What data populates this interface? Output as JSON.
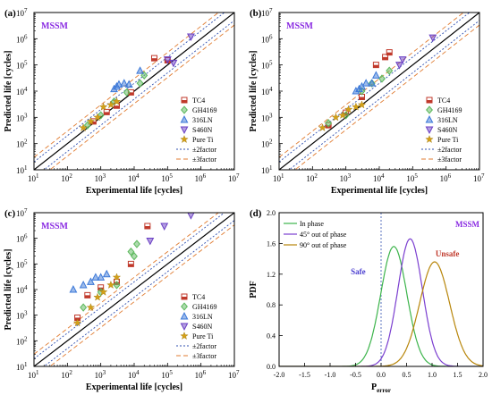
{
  "colors": {
    "TC4": "#c0392b",
    "GH4169": "#5cb85c",
    "316LN": "#3b78d8",
    "S460N": "#6a3fc4",
    "Pure Ti": "#d4a017",
    "factor2": "#3050b0",
    "factor3": "#e07b30",
    "mssm": "#8a2be2",
    "in_phase": "#3cb44b",
    "out45": "#7b3fd0",
    "out90": "#b8860b",
    "safe": "#4b3fd0",
    "unsafe": "#c0392b"
  },
  "chart_data": [
    {
      "type": "scatter",
      "panel_label": "(a)",
      "model_label": "MSSM",
      "xlabel": "Experimental life [cycles]",
      "ylabel": "Predicted life [cycles]",
      "scale": "log",
      "xlim": [
        10,
        10000000
      ],
      "ylim": [
        10,
        10000000
      ],
      "x_tick_labels": [
        "10¹",
        "10²",
        "10³",
        "10⁴",
        "10⁵",
        "10⁶",
        "10⁷"
      ],
      "y_tick_labels": [
        "10¹",
        "10²",
        "10³",
        "10⁴",
        "10⁵",
        "10⁶",
        "10⁷"
      ],
      "legend": [
        "TC4",
        "GH4169",
        "316LN",
        "S460N",
        "Pure Ti",
        "±2factor",
        "±3factor"
      ],
      "legend_position": "lower-right",
      "series": [
        {
          "name": "TC4",
          "marker": "square",
          "points": [
            [
              600,
              700
            ],
            [
              1500,
              1600
            ],
            [
              3000,
              2800
            ],
            [
              8000,
              9000
            ],
            [
              40000,
              180000
            ],
            [
              100000,
              150000
            ]
          ]
        },
        {
          "name": "GH4169",
          "marker": "diamond",
          "points": [
            [
              400,
              500
            ],
            [
              1000,
              1200
            ],
            [
              2500,
              4000
            ],
            [
              6000,
              9000
            ],
            [
              15000,
              20000
            ],
            [
              20000,
              40000
            ]
          ]
        },
        {
          "name": "316LN",
          "marker": "triangle-up",
          "points": [
            [
              2500,
              12000
            ],
            [
              3000,
              15000
            ],
            [
              3500,
              18000
            ],
            [
              5000,
              20000
            ],
            [
              7000,
              18000
            ],
            [
              15000,
              60000
            ]
          ]
        },
        {
          "name": "S460N",
          "marker": "triangle-down",
          "points": [
            [
              150000,
              120000
            ],
            [
              500000,
              1200000
            ],
            [
              100000,
              160000
            ]
          ]
        },
        {
          "name": "Pure Ti",
          "marker": "star",
          "points": [
            [
              300,
              400
            ],
            [
              500,
              700
            ],
            [
              800,
              1000
            ],
            [
              1200,
              2500
            ],
            [
              2000,
              3000
            ],
            [
              3000,
              4000
            ]
          ]
        }
      ]
    },
    {
      "type": "scatter",
      "panel_label": "(b)",
      "model_label": "MSSM",
      "xlabel": "Experimental life [cycles]",
      "ylabel": "Predicted life [cycles]",
      "scale": "log",
      "xlim": [
        10,
        10000000
      ],
      "ylim": [
        10,
        10000000
      ],
      "x_tick_labels": [
        "10¹",
        "10²",
        "10³",
        "10⁴",
        "10⁵",
        "10⁶",
        "10⁷"
      ],
      "y_tick_labels": [
        "10¹",
        "10²",
        "10³",
        "10⁴",
        "10⁵",
        "10⁶",
        "10⁷"
      ],
      "legend": [
        "TC4",
        "GH4169",
        "316LN",
        "S460N",
        "Pure Ti",
        "±2factor",
        "±3factor"
      ],
      "legend_position": "lower-right",
      "series": [
        {
          "name": "TC4",
          "marker": "square",
          "points": [
            [
              300,
              500
            ],
            [
              1000,
              1500
            ],
            [
              3000,
              6000
            ],
            [
              8000,
              100000
            ],
            [
              15000,
              200000
            ],
            [
              20000,
              300000
            ]
          ]
        },
        {
          "name": "GH4169",
          "marker": "diamond",
          "points": [
            [
              300,
              600
            ],
            [
              1000,
              1200
            ],
            [
              3000,
              10000
            ],
            [
              6000,
              20000
            ],
            [
              12000,
              30000
            ],
            [
              20000,
              60000
            ]
          ]
        },
        {
          "name": "316LN",
          "marker": "triangle-up",
          "points": [
            [
              2000,
              10000
            ],
            [
              2500,
              12000
            ],
            [
              3000,
              15000
            ],
            [
              4000,
              20000
            ],
            [
              6000,
              20000
            ],
            [
              8000,
              40000
            ]
          ]
        },
        {
          "name": "S460N",
          "marker": "triangle-down",
          "points": [
            [
              40000,
              100000
            ],
            [
              50000,
              160000
            ],
            [
              400000,
              1100000
            ]
          ]
        },
        {
          "name": "Pure Ti",
          "marker": "star",
          "points": [
            [
              200,
              400
            ],
            [
              500,
              1000
            ],
            [
              800,
              1200
            ],
            [
              1200,
              2000
            ],
            [
              2000,
              2500
            ],
            [
              3000,
              3000
            ]
          ]
        }
      ]
    },
    {
      "type": "scatter",
      "panel_label": "(c)",
      "model_label": "MSSM",
      "xlabel": "Experimental life [cycles]",
      "ylabel": "Predicted life [cycles]",
      "scale": "log",
      "xlim": [
        10,
        10000000
      ],
      "ylim": [
        10,
        10000000
      ],
      "x_tick_labels": [
        "10¹",
        "10²",
        "10³",
        "10⁴",
        "10⁵",
        "10⁶",
        "10⁷"
      ],
      "y_tick_labels": [
        "10¹",
        "10²",
        "10³",
        "10⁴",
        "10⁵",
        "10⁶",
        "10⁷"
      ],
      "legend": [
        "TC4",
        "GH4169",
        "316LN",
        "S460N",
        "Pure Ti",
        "±2factor",
        "±3factor"
      ],
      "legend_position": "lower-right",
      "series": [
        {
          "name": "TC4",
          "marker": "square",
          "points": [
            [
              200,
              800
            ],
            [
              400,
              6000
            ],
            [
              1000,
              12000
            ],
            [
              3000,
              20000
            ],
            [
              8000,
              100000
            ],
            [
              25000,
              3000000
            ]
          ]
        },
        {
          "name": "GH4169",
          "marker": "diamond",
          "points": [
            [
              300,
              2000
            ],
            [
              1000,
              8000
            ],
            [
              3000,
              15000
            ],
            [
              8000,
              300000
            ],
            [
              10000,
              200000
            ],
            [
              12000,
              600000
            ]
          ]
        },
        {
          "name": "316LN",
          "marker": "triangle-up",
          "points": [
            [
              150,
              10000
            ],
            [
              300,
              15000
            ],
            [
              500,
              20000
            ],
            [
              700,
              30000
            ],
            [
              1000,
              30000
            ],
            [
              1500,
              40000
            ]
          ]
        },
        {
          "name": "S460N",
          "marker": "triangle-down",
          "points": [
            [
              30000,
              800000
            ],
            [
              80000,
              3000000
            ],
            [
              500000,
              8000000
            ]
          ]
        },
        {
          "name": "Pure Ti",
          "marker": "star",
          "points": [
            [
              200,
              500
            ],
            [
              500,
              2000
            ],
            [
              800,
              5000
            ],
            [
              1200,
              8000
            ],
            [
              2000,
              15000
            ],
            [
              3000,
              30000
            ]
          ]
        }
      ]
    },
    {
      "type": "line",
      "panel_label": "(d)",
      "model_label": "MSSM",
      "xlabel": "Perror",
      "ylabel": "PDF",
      "xlim": [
        -2.0,
        2.0
      ],
      "ylim": [
        0.0,
        2.0
      ],
      "x_tick_labels": [
        "-2.0",
        "-1.5",
        "-1.0",
        "-0.5",
        "0.0",
        "0.5",
        "1.0",
        "1.5",
        "2.0"
      ],
      "y_tick_labels": [
        "0.0",
        "0.4",
        "0.8",
        "1.2",
        "1.6",
        "2.0"
      ],
      "annotations": {
        "safe": "Safe",
        "unsafe": "Unsafe"
      },
      "legend_position": "top-left",
      "series": [
        {
          "name": "In phase",
          "mean": 0.25,
          "peak": 1.56
        },
        {
          "name": "45° out of phase",
          "mean": 0.57,
          "peak": 1.66
        },
        {
          "name": "90° out of phase",
          "mean": 1.05,
          "peak": 1.36
        }
      ]
    }
  ]
}
